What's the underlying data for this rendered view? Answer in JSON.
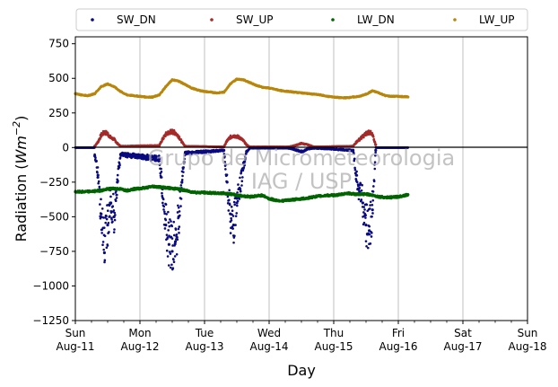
{
  "chart_data": {
    "type": "scatter",
    "xlabel": "Day",
    "ylabel_main": "Radiation (",
    "ylabel_unit": "Wm",
    "ylabel_exp": "−2",
    "ylabel_close": ")",
    "ylim": [
      -1250,
      800
    ],
    "yticks": [
      750,
      500,
      250,
      0,
      -250,
      -500,
      -750,
      -1000,
      -1250
    ],
    "ytick_labels": [
      "750",
      "500",
      "250",
      "0",
      "−250",
      "−500",
      "−750",
      "−1000",
      "−1250"
    ],
    "xlim": [
      0,
      7
    ],
    "xticks": [
      {
        "x": 0,
        "day": "Sun",
        "date": "Aug-11"
      },
      {
        "x": 1,
        "day": "Mon",
        "date": "Aug-12"
      },
      {
        "x": 2,
        "day": "Tue",
        "date": "Aug-13"
      },
      {
        "x": 3,
        "day": "Wed",
        "date": "Aug-14"
      },
      {
        "x": 4,
        "day": "Thu",
        "date": "Aug-15"
      },
      {
        "x": 5,
        "day": "Fri",
        "date": "Aug-16"
      },
      {
        "x": 6,
        "day": "Sat",
        "date": "Aug-17"
      },
      {
        "x": 7,
        "day": "Sun",
        "date": "Aug-18"
      }
    ],
    "grid_x": true,
    "legend_position": "top, outside plot",
    "watermark": [
      "Grupo de Micrometeorologia",
      "IAG / USP"
    ],
    "data_end_x": 5.15,
    "series": [
      {
        "name": "SW_DN",
        "color": "#0a0a80",
        "x": [
          0.3,
          0.35,
          0.4,
          0.45,
          0.5,
          0.55,
          0.6,
          0.65,
          0.7,
          1.3,
          1.35,
          1.4,
          1.45,
          1.5,
          1.55,
          1.6,
          1.65,
          1.7,
          2.3,
          2.35,
          2.4,
          2.45,
          2.5,
          2.55,
          2.6,
          2.65,
          2.7,
          3.3,
          3.4,
          3.5,
          3.6,
          3.7,
          4.3,
          4.35,
          4.4,
          4.45,
          4.5,
          4.55,
          4.6,
          4.65
        ],
        "y": [
          -60,
          -200,
          -480,
          -760,
          -560,
          -400,
          -500,
          -250,
          -50,
          -80,
          -300,
          -560,
          -700,
          -750,
          -680,
          -500,
          -250,
          -40,
          -20,
          -250,
          -480,
          -560,
          -400,
          -300,
          -150,
          -30,
          -5,
          -5,
          -15,
          -30,
          -10,
          -5,
          -20,
          -200,
          -320,
          -400,
          -560,
          -600,
          -450,
          -20
        ]
      },
      {
        "name": "SW_UP",
        "color": "#a52a2a",
        "x": [
          0.3,
          0.35,
          0.4,
          0.45,
          0.5,
          0.55,
          0.6,
          0.65,
          0.7,
          1.3,
          1.35,
          1.4,
          1.45,
          1.5,
          1.55,
          1.6,
          1.65,
          1.7,
          2.3,
          2.35,
          2.4,
          2.45,
          2.5,
          2.55,
          2.6,
          2.65,
          2.7,
          3.3,
          3.4,
          3.5,
          3.6,
          3.7,
          4.3,
          4.35,
          4.4,
          4.45,
          4.5,
          4.55,
          4.6,
          4.65
        ],
        "y": [
          10,
          40,
          90,
          110,
          100,
          70,
          60,
          30,
          10,
          15,
          60,
          95,
          110,
          115,
          105,
          80,
          40,
          10,
          5,
          50,
          75,
          85,
          80,
          70,
          50,
          20,
          5,
          5,
          15,
          30,
          20,
          5,
          10,
          40,
          60,
          80,
          100,
          115,
          90,
          20
        ]
      },
      {
        "name": "LW_DN",
        "color": "#006400",
        "x": [
          0.0,
          0.1,
          0.2,
          0.3,
          0.4,
          0.5,
          0.6,
          0.7,
          0.8,
          0.9,
          1.0,
          1.1,
          1.2,
          1.3,
          1.4,
          1.5,
          1.6,
          1.7,
          1.8,
          1.9,
          2.0,
          2.1,
          2.2,
          2.3,
          2.4,
          2.5,
          2.6,
          2.7,
          2.8,
          2.9,
          3.0,
          3.1,
          3.2,
          3.3,
          3.4,
          3.5,
          3.6,
          3.7,
          3.8,
          3.9,
          4.0,
          4.1,
          4.2,
          4.3,
          4.4,
          4.5,
          4.6,
          4.7,
          4.8,
          4.9,
          5.0,
          5.1,
          5.15
        ],
        "y": [
          -320,
          -320,
          -318,
          -315,
          -310,
          -300,
          -295,
          -300,
          -310,
          -300,
          -295,
          -290,
          -280,
          -285,
          -290,
          -295,
          -300,
          -310,
          -320,
          -325,
          -325,
          -328,
          -330,
          -330,
          -335,
          -345,
          -350,
          -355,
          -350,
          -345,
          -370,
          -380,
          -385,
          -380,
          -375,
          -370,
          -365,
          -355,
          -350,
          -345,
          -345,
          -340,
          -330,
          -335,
          -340,
          -335,
          -345,
          -355,
          -360,
          -360,
          -355,
          -345,
          -340
        ]
      },
      {
        "name": "LW_UP",
        "color": "#b8860b",
        "x": [
          0.0,
          0.1,
          0.2,
          0.3,
          0.4,
          0.5,
          0.6,
          0.7,
          0.8,
          0.9,
          1.0,
          1.1,
          1.2,
          1.3,
          1.4,
          1.5,
          1.6,
          1.7,
          1.8,
          1.9,
          2.0,
          2.1,
          2.2,
          2.3,
          2.4,
          2.5,
          2.6,
          2.7,
          2.8,
          2.9,
          3.0,
          3.1,
          3.2,
          3.3,
          3.4,
          3.5,
          3.6,
          3.7,
          3.8,
          3.9,
          4.0,
          4.1,
          4.2,
          4.3,
          4.4,
          4.5,
          4.6,
          4.7,
          4.8,
          4.9,
          5.0,
          5.1,
          5.15
        ],
        "y": [
          390,
          380,
          375,
          390,
          440,
          460,
          440,
          405,
          380,
          375,
          370,
          365,
          365,
          380,
          440,
          490,
          480,
          455,
          430,
          415,
          405,
          400,
          395,
          400,
          460,
          495,
          490,
          470,
          450,
          435,
          430,
          420,
          410,
          405,
          400,
          395,
          390,
          385,
          380,
          370,
          365,
          360,
          360,
          365,
          370,
          385,
          410,
          395,
          375,
          370,
          370,
          368,
          365
        ]
      }
    ]
  }
}
